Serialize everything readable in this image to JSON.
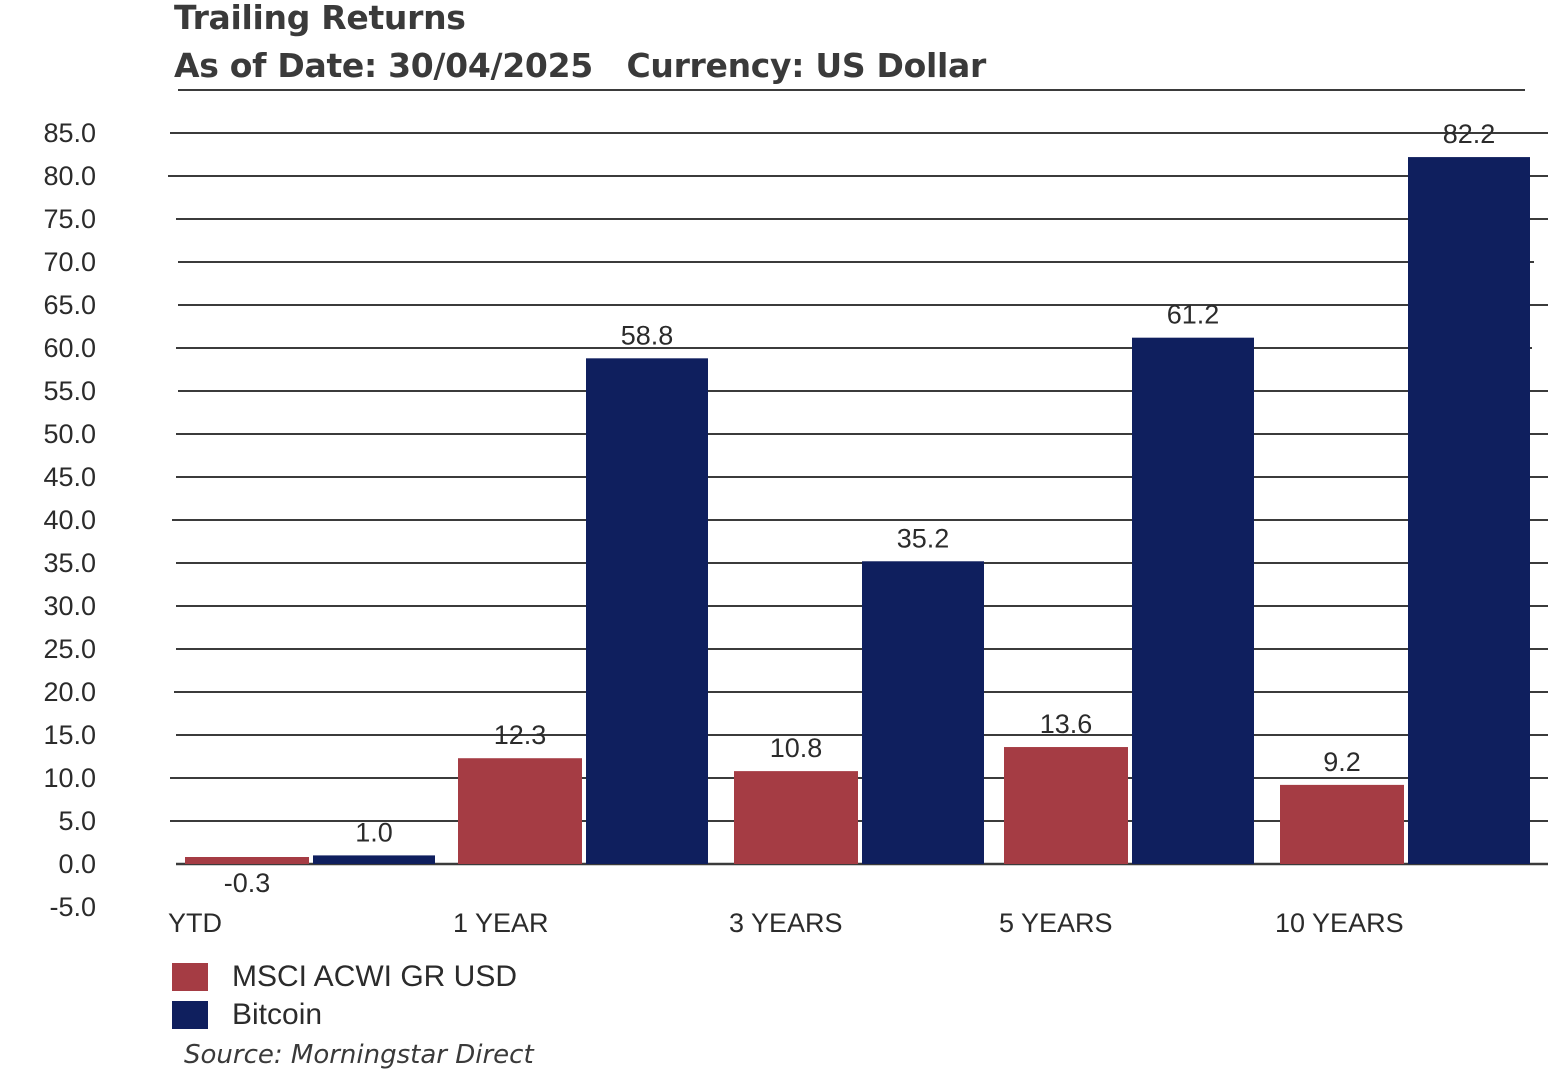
{
  "header": {
    "title": "Trailing Returns",
    "subtitle": "As of Date: 30/04/2025   Currency: US Dollar"
  },
  "chart_data": {
    "type": "bar",
    "title": "Trailing Returns",
    "categories": [
      "YTD",
      "1 YEAR",
      "3 YEARS",
      "5 YEARS",
      "10 YEARS"
    ],
    "series": [
      {
        "name": "MSCI ACWI GR USD",
        "color": "#a53c44",
        "values": [
          -0.3,
          12.3,
          10.8,
          13.6,
          9.2
        ]
      },
      {
        "name": "Bitcoin",
        "color": "#0f1f5e",
        "values": [
          1.0,
          58.8,
          35.2,
          61.2,
          82.2
        ]
      }
    ],
    "y_ticks": [
      "85.0",
      "80.0",
      "75.0",
      "70.0",
      "65.0",
      "60.0",
      "55.0",
      "50.0",
      "45.0",
      "40.0",
      "35.0",
      "30.0",
      "25.0",
      "20.0",
      "15.0",
      "10.0",
      "5.0",
      "0.0",
      "-5.0"
    ],
    "ylim": [
      -5,
      85
    ],
    "grid": true,
    "legend_position": "bottom-left",
    "source": "Source: Morningstar Direct"
  }
}
